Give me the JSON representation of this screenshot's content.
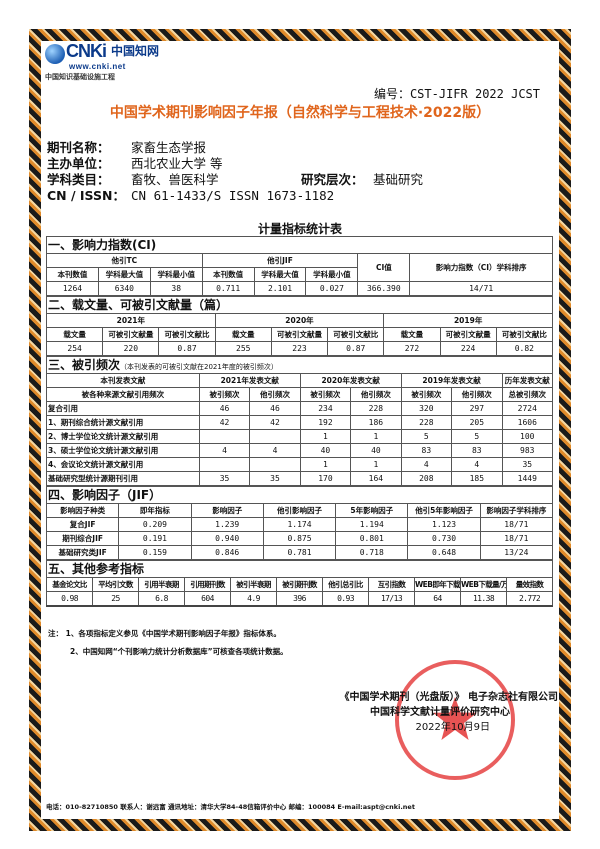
{
  "header": {
    "logo_brand": "CNKi",
    "logo_cn": "中国知网",
    "logo_url": "www.cnki.net",
    "logo_sub": "中国知识基础设施工程",
    "code": "编号：CST-JIFR 2022 JCST",
    "title": "中国学术期刊影响因子年报（自然科学与工程技术·2022版）"
  },
  "info": {
    "name_label": "期刊名称：",
    "name": "家畜生态学报",
    "sponsor_label": "主办单位：",
    "sponsor": "西北农业大学 等",
    "subject_label": "学科类目：",
    "subject": "畜牧、兽医科学",
    "level_label": "研究层次：",
    "level": "基础研究",
    "issn_label": "CN / ISSN：",
    "issn": "CN 61-1433/S ISSN 1673-1182"
  },
  "sheet_title": "计量指标统计表",
  "s1": {
    "title": "一、影响力指数(CI)",
    "g1": "他引TC",
    "g2": "他引JIF",
    "ci": "CI值",
    "rank": "影响力指数（CI）学科排序",
    "cols": [
      "本刊数值",
      "学科最大值",
      "学科最小值",
      "本刊数值",
      "学科最大值",
      "学科最小值"
    ],
    "values": [
      "1264",
      "6340",
      "38",
      "0.711",
      "2.101",
      "0.027",
      "366.390",
      "14/71"
    ]
  },
  "s2": {
    "title": "二、载文量、可被引文献量（篇）",
    "years": [
      "2021年",
      "2020年",
      "2019年"
    ],
    "cols": [
      "载文量",
      "可被引文献量",
      "可被引文献比"
    ],
    "values": [
      "254",
      "220",
      "0.87",
      "255",
      "223",
      "0.87",
      "272",
      "224",
      "0.82"
    ]
  },
  "s3": {
    "title": "三、被引频次",
    "note": "（本刊发表的可被引文献在2021年度的被引频次）",
    "h1": "本刊发表文献",
    "h2": "被各种来源文献引用频次",
    "groups": [
      "2021年发表文献",
      "2020年发表文献",
      "2019年发表文献",
      "历年发表文献"
    ],
    "sub": [
      "被引频次",
      "他引频次",
      "被引频次",
      "他引频次",
      "被引频次",
      "他引频次",
      "总被引频次"
    ],
    "rows": [
      {
        "label": "复合引用",
        "values": [
          "46",
          "46",
          "234",
          "228",
          "320",
          "297",
          "2724"
        ]
      },
      {
        "label": "1、期刊综合统计源文献引用",
        "values": [
          "42",
          "42",
          "192",
          "186",
          "228",
          "205",
          "1606"
        ]
      },
      {
        "label": "2、博士学位论文统计源文献引用",
        "values": [
          "",
          "",
          "1",
          "1",
          "5",
          "5",
          "100"
        ]
      },
      {
        "label": "3、硕士学位论文统计源文献引用",
        "values": [
          "4",
          "4",
          "40",
          "40",
          "83",
          "83",
          "983"
        ]
      },
      {
        "label": "4、会议论文统计源文献引用",
        "values": [
          "",
          "",
          "1",
          "1",
          "4",
          "4",
          "35"
        ]
      },
      {
        "label": "基础研究型统计源期刊引用",
        "values": [
          "35",
          "35",
          "170",
          "164",
          "208",
          "185",
          "1449"
        ]
      }
    ]
  },
  "s4": {
    "title": "四、影响因子（JIF）",
    "cols": [
      "影响因子种类",
      "即年指标",
      "影响因子",
      "他引影响因子",
      "5年影响因子",
      "他引5年影响因子",
      "影响因子学科排序"
    ],
    "rows": [
      [
        "复合JIF",
        "0.209",
        "1.239",
        "1.174",
        "1.194",
        "1.123",
        "18/71"
      ],
      [
        "期刊综合JIF",
        "0.191",
        "0.940",
        "0.875",
        "0.801",
        "0.730",
        "18/71"
      ],
      [
        "基础研究类JIF",
        "0.159",
        "0.846",
        "0.781",
        "0.718",
        "0.648",
        "13/24"
      ]
    ]
  },
  "s5": {
    "title": "五、其他参考指标",
    "cols": [
      "基金论文比",
      "平均引文数",
      "引用半衰期",
      "引用期刊数",
      "被引半衰期",
      "被引期刊数",
      "他引总引比",
      "互引指数",
      "WEB即年下载率",
      "WEB下载量/万次",
      "量效指数"
    ],
    "values": [
      "0.98",
      "25",
      "6.8",
      "604",
      "4.9",
      "396",
      "0.93",
      "17/13",
      "64",
      "11.38",
      "2.772"
    ]
  },
  "notes": [
    "注：  1、各项指标定义参见《中国学术期刊影响因子年报》指标体系。",
    "2、中国知网“个刊影响力统计分析数据库”可核查各项统计数据。"
  ],
  "signature": {
    "org1": "《中国学术期刊（光盘版）》 电子杂志社有限公司",
    "org2": "中国科学文献计量评价研究中心",
    "date": "2022年10月9日"
  },
  "seal": {
    "text": "《中国学术期刊(光盘版)》电子杂志社有限公司",
    "number": "1101080491210",
    "color": "#e12828"
  },
  "footer": "电话：010-82710850 联系人：谢远富 通讯地址：清华大学84-48信箱评价中心 邮编：100084 E-mail:aspt@cnki.net",
  "colors": {
    "title": "#e0651c",
    "border_orange": "#e08a2a",
    "border_dark": "#1a1a1a"
  }
}
